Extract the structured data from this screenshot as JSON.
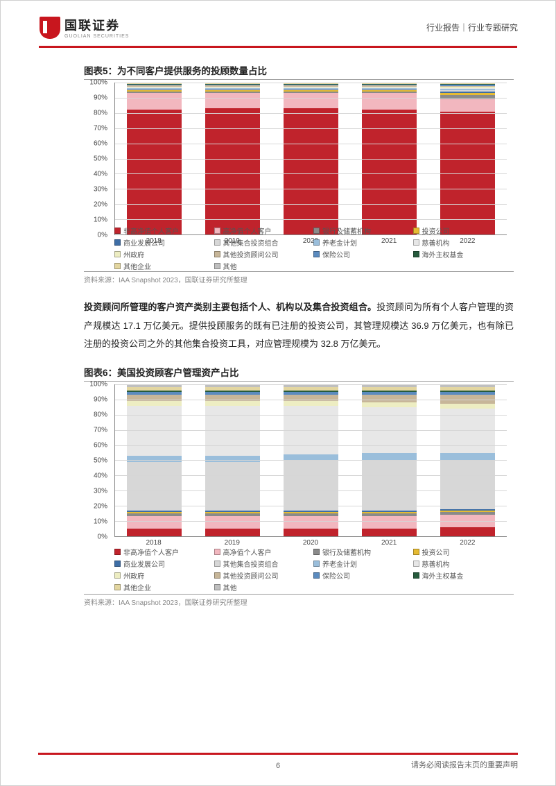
{
  "header": {
    "logo_cn": "国联证券",
    "logo_en": "GUOLIAN SECURITIES",
    "breadcrumb": "行业报告｜行业专题研究"
  },
  "chart5": {
    "title": "图表5：为不同客户提供服务的投顾数量占比",
    "type": "stacked-bar",
    "ylim": [
      0,
      100
    ],
    "ytick_step": 10,
    "categories": [
      "2018",
      "2019",
      "2020",
      "2021",
      "2022"
    ],
    "series_order": [
      "s1",
      "s2",
      "s3",
      "s4",
      "s5",
      "s6",
      "s7",
      "s8",
      "s9",
      "s10",
      "s11",
      "s12",
      "s13",
      "s14"
    ],
    "colors": {
      "s1": "#c0232c",
      "s2": "#f2b7bf",
      "s3": "#8a8a8a",
      "s4": "#e6bb33",
      "s5": "#3e6ea6",
      "s6": "#d7d7d7",
      "s7": "#9abedb",
      "s8": "#e7e7e7",
      "s9": "#ededc2",
      "s10": "#c7b699",
      "s11": "#5b8bbf",
      "s12": "#265b3d",
      "s13": "#e3d6a0",
      "s14": "#bfbfbf"
    },
    "labels": {
      "s1": "非高净值个人客户",
      "s2": "高净值个人客户",
      "s3": "银行及储蓄机构",
      "s4": "投资公司",
      "s5": "商业发展公司",
      "s6": "其他集合投资组合",
      "s7": "养老金计划",
      "s8": "慈善机构",
      "s9": "州政府",
      "s10": "其他投资顾问公司",
      "s11": "保险公司",
      "s12": "海外主权基金",
      "s13": "其他企业",
      "s14": "其他"
    },
    "data": {
      "2018": {
        "s1": 82,
        "s2": 11,
        "s3": 1,
        "s4": 1,
        "s5": 0.5,
        "s6": 0.5,
        "s7": 0.5,
        "s8": 0.5,
        "s9": 0.5,
        "s10": 0.5,
        "s11": 0.5,
        "s12": 0.5,
        "s13": 0.5,
        "s14": 0.5
      },
      "2019": {
        "s1": 83,
        "s2": 10,
        "s3": 1,
        "s4": 1,
        "s5": 0.5,
        "s6": 0.5,
        "s7": 0.5,
        "s8": 0.5,
        "s9": 0.5,
        "s10": 0.5,
        "s11": 0.5,
        "s12": 0.5,
        "s13": 0.5,
        "s14": 0.5
      },
      "2020": {
        "s1": 83,
        "s2": 10,
        "s3": 1,
        "s4": 1,
        "s5": 0.5,
        "s6": 0.5,
        "s7": 0.5,
        "s8": 0.5,
        "s9": 0.5,
        "s10": 0.5,
        "s11": 0.5,
        "s12": 0.5,
        "s13": 0.5,
        "s14": 0.5
      },
      "2021": {
        "s1": 82,
        "s2": 11,
        "s3": 1,
        "s4": 1,
        "s5": 0.5,
        "s6": 0.5,
        "s7": 0.5,
        "s8": 0.5,
        "s9": 0.5,
        "s10": 0.5,
        "s11": 0.5,
        "s12": 0.5,
        "s13": 0.5,
        "s14": 0.5
      },
      "2022": {
        "s1": 81,
        "s2": 8,
        "s3": 3,
        "s4": 1,
        "s5": 1,
        "s6": 1,
        "s7": 0.7,
        "s8": 0.7,
        "s9": 0.7,
        "s10": 0.7,
        "s11": 0.7,
        "s12": 0.5,
        "s13": 0.5,
        "s14": 0.5
      }
    },
    "source": "资料来源：IAA Snapshot 2023，国联证券研究所整理",
    "grid_color": "#d6d6d6",
    "axis_color": "#888888",
    "tick_fontsize": 10,
    "legend_fontsize": 10
  },
  "paragraph": {
    "bold": "投资顾问所管理的客户资产类别主要包括个人、机构以及集合投资组合。",
    "rest": "投资顾问为所有个人客户管理的资产规模达 17.1 万亿美元。提供投顾服务的既有已注册的投资公司，其管理规模达 36.9 万亿美元，也有除已注册的投资公司之外的其他集合投资工具，对应管理规模为 32.8 万亿美元。"
  },
  "chart6": {
    "title": "图表6：美国投资顾客户管理资产占比",
    "type": "stacked-bar",
    "ylim": [
      0,
      100
    ],
    "ytick_step": 10,
    "categories": [
      "2018",
      "2019",
      "2020",
      "2021",
      "2022"
    ],
    "series_order": [
      "s1",
      "s2",
      "s3",
      "s4",
      "s5",
      "s6",
      "s7",
      "s8",
      "s9",
      "s10",
      "s11",
      "s12",
      "s13",
      "s14"
    ],
    "colors": {
      "s1": "#c0232c",
      "s2": "#f2b7bf",
      "s3": "#8a8a8a",
      "s4": "#e6bb33",
      "s5": "#3e6ea6",
      "s6": "#d7d7d7",
      "s7": "#9abedb",
      "s8": "#e7e7e7",
      "s9": "#ededc2",
      "s10": "#c7b699",
      "s11": "#5b8bbf",
      "s12": "#265b3d",
      "s13": "#e3d6a0",
      "s14": "#bfbfbf"
    },
    "labels": {
      "s1": "非高净值个人客户",
      "s2": "高净值个人客户",
      "s3": "银行及储蓄机构",
      "s4": "投资公司",
      "s5": "商业发展公司",
      "s6": "其他集合投资组合",
      "s7": "养老金计划",
      "s8": "慈善机构",
      "s9": "州政府",
      "s10": "其他投资顾问公司",
      "s11": "保险公司",
      "s12": "海外主权基金",
      "s13": "其他企业",
      "s14": "其他"
    },
    "data": {
      "2018": {
        "s1": 5,
        "s2": 8,
        "s3": 2,
        "s4": 1,
        "s5": 1,
        "s6": 32,
        "s7": 4,
        "s8": 33,
        "s9": 3,
        "s10": 4,
        "s11": 2,
        "s12": 1,
        "s13": 2,
        "s14": 2
      },
      "2019": {
        "s1": 5,
        "s2": 8,
        "s3": 2,
        "s4": 1,
        "s5": 1,
        "s6": 32,
        "s7": 4,
        "s8": 33,
        "s9": 3,
        "s10": 4,
        "s11": 2,
        "s12": 1,
        "s13": 2,
        "s14": 2
      },
      "2020": {
        "s1": 5,
        "s2": 8,
        "s3": 2,
        "s4": 1,
        "s5": 1,
        "s6": 33,
        "s7": 4,
        "s8": 32,
        "s9": 3,
        "s10": 4,
        "s11": 2,
        "s12": 1,
        "s13": 2,
        "s14": 2
      },
      "2021": {
        "s1": 5,
        "s2": 8,
        "s3": 2,
        "s4": 1,
        "s5": 1,
        "s6": 33,
        "s7": 5,
        "s8": 30,
        "s9": 3,
        "s10": 5,
        "s11": 2,
        "s12": 1,
        "s13": 2,
        "s14": 2
      },
      "2022": {
        "s1": 6,
        "s2": 8,
        "s3": 2,
        "s4": 1,
        "s5": 1,
        "s6": 32,
        "s7": 5,
        "s8": 29,
        "s9": 3,
        "s10": 6,
        "s11": 2,
        "s12": 1,
        "s13": 2,
        "s14": 2
      }
    },
    "source": "资料来源：IAA Snapshot 2023，国联证券研究所整理",
    "grid_color": "#d6d6d6",
    "axis_color": "#888888",
    "tick_fontsize": 10,
    "legend_fontsize": 10
  },
  "footer": {
    "page": "6",
    "disclaimer": "请务必阅读报告末页的重要声明"
  }
}
